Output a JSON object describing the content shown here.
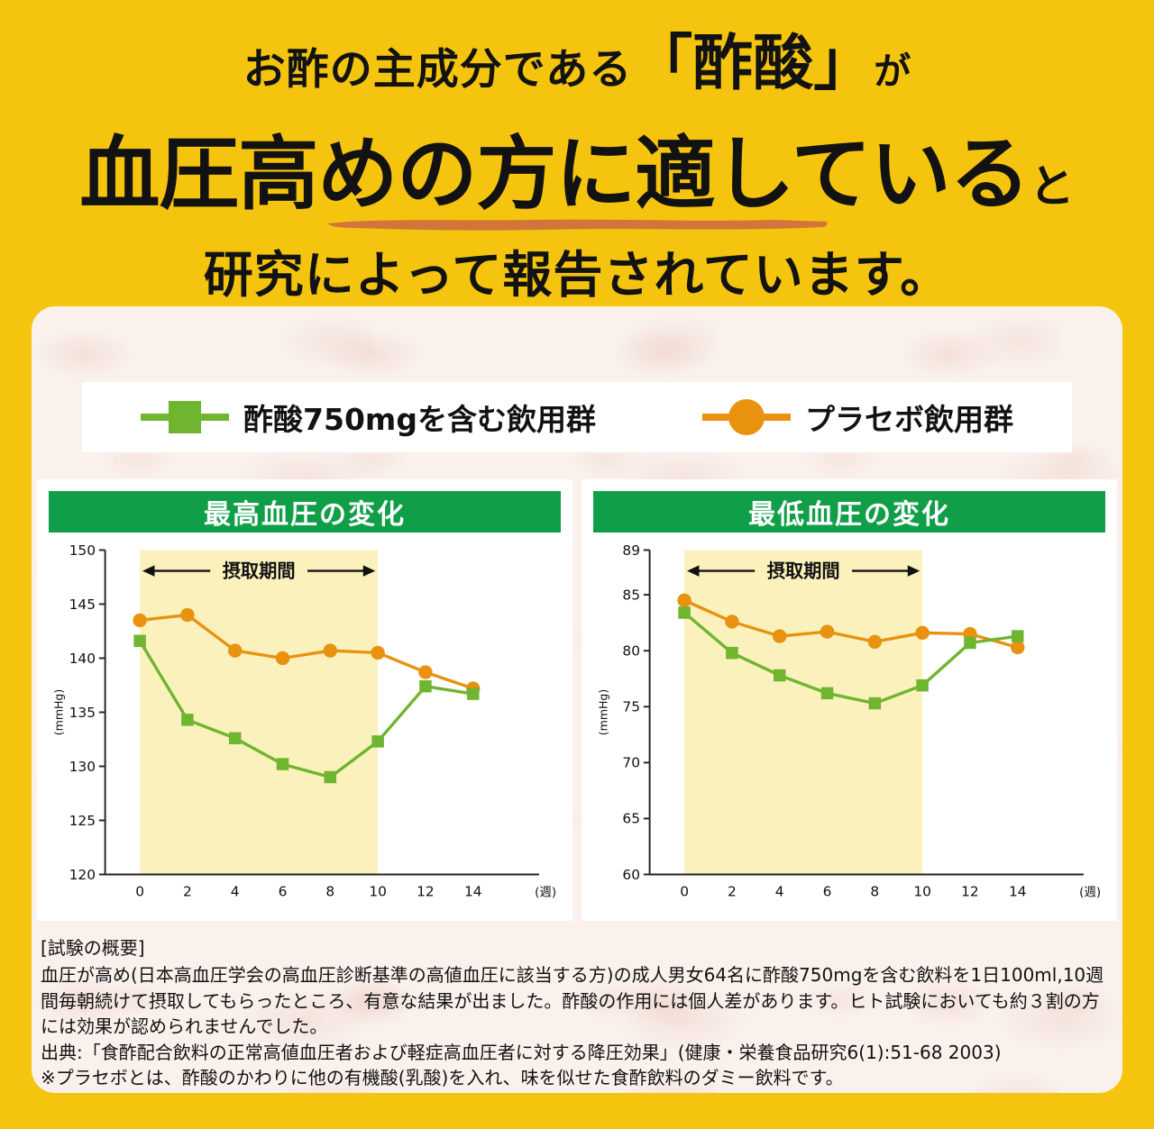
{
  "header": {
    "line1_pre": "お酢の主成分である",
    "line1_bracket": "「酢酸」",
    "line1_post": "が",
    "line2_main": "血圧高めの方に適している",
    "line2_suffix": "と",
    "line3": "研究によって報告されています。"
  },
  "legend": {
    "acetic": "酢酸750mgを含む飲用群",
    "placebo": "プラセボ飲用群"
  },
  "colors": {
    "yellow_bg": "#f5c40e",
    "green_header": "#119e49",
    "green_series": "#6fb52f",
    "orange_series": "#e8920f",
    "band_yellow": "#faf1bc",
    "brush_orange": "#cf6f3d"
  },
  "chart_data": [
    {
      "type": "line",
      "title": "最高血圧の変化",
      "ylabel": "(mmHg)",
      "xlabel_unit": "(週)",
      "band_label": "摂取期間",
      "band_x": [
        0,
        10
      ],
      "x": [
        0,
        2,
        4,
        6,
        8,
        10,
        12,
        14
      ],
      "ylim": [
        120,
        150
      ],
      "yticks": [
        120,
        125,
        130,
        135,
        140,
        145,
        150
      ],
      "series": [
        {
          "name": "酢酸750mgを含む飲用群",
          "marker": "square",
          "color": "#6fb52f",
          "values": [
            141.6,
            134.3,
            132.6,
            130.2,
            129.0,
            132.3,
            137.4,
            136.7
          ]
        },
        {
          "name": "プラセボ飲用群",
          "marker": "circle",
          "color": "#e8920f",
          "values": [
            143.5,
            144.0,
            140.7,
            140.0,
            140.7,
            140.5,
            138.7,
            137.2
          ]
        }
      ]
    },
    {
      "type": "line",
      "title": "最低血圧の変化",
      "ylabel": "(mmHg)",
      "xlabel_unit": "(週)",
      "band_label": "摂取期間",
      "band_x": [
        0,
        10
      ],
      "x": [
        0,
        2,
        4,
        6,
        8,
        10,
        12,
        14
      ],
      "ylim": [
        60,
        89
      ],
      "yticks": [
        60,
        65,
        70,
        75,
        80,
        85,
        89
      ],
      "series": [
        {
          "name": "酢酸750mgを含む飲用群",
          "marker": "square",
          "color": "#6fb52f",
          "values": [
            83.4,
            79.8,
            77.8,
            76.2,
            75.3,
            76.9,
            80.7,
            81.3
          ]
        },
        {
          "name": "プラセボ飲用群",
          "marker": "circle",
          "color": "#e8920f",
          "values": [
            84.5,
            82.6,
            81.3,
            81.7,
            80.8,
            81.6,
            81.5,
            80.3
          ]
        }
      ]
    }
  ],
  "footnotes": {
    "heading": "[試験の概要]",
    "body": "血圧が高め(日本高血圧学会の高血圧診断基準の高値血圧に該当する方)の成人男女64名に酢酸750mgを含む飲料を1日100ml,10週間毎朝続けて摂取してもらったところ、有意な結果が出ました。酢酸の作用には個人差があります。ヒト試験においても約３割の方には効果が認められませんでした。",
    "source": "出典:「食酢配合飲料の正常高値血圧者および軽症高血圧者に対する降圧効果」(健康・栄養食品研究6(1):51-68 2003)",
    "note": "※プラセボとは、酢酸のかわりに他の有機酸(乳酸)を入れ、味を似せた食酢飲料のダミー飲料です。"
  }
}
